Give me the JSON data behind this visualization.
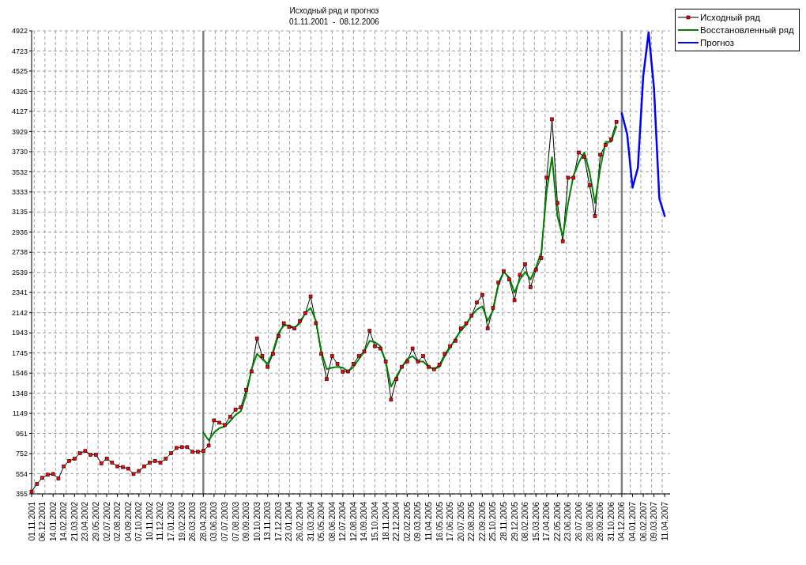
{
  "chart_data": {
    "type": "line",
    "title": "Исходный ряд и прогноз",
    "subtitle": "01.11.2001  -  08.12.2006",
    "categories": [
      "01.11.2001",
      null,
      "06.12.2001",
      null,
      "14.01.2002",
      null,
      "14.02.2002",
      null,
      "21.03.2002",
      null,
      "23.04.2002",
      null,
      "29.05.2002",
      null,
      "02.07.2002",
      null,
      "02.08.2002",
      null,
      "04.09.2002",
      null,
      "07.10.2002",
      null,
      "10.11.2002",
      null,
      "11.12.2002",
      null,
      "17.01.2003",
      null,
      "19.02.2003",
      null,
      "26.03.2003",
      null,
      "28.04.2003",
      null,
      "03.06.2003",
      null,
      "07.07.2003",
      null,
      "07.08.2003",
      null,
      "09.09.2003",
      null,
      "10.10.2003",
      null,
      "13.11.2003",
      null,
      "17.12.2003",
      null,
      "23.01.2004",
      null,
      "26.02.2004",
      null,
      "31.03.2004",
      null,
      "05.05.2004",
      null,
      "08.06.2004",
      null,
      "12.07.2004",
      null,
      "12.08.2004",
      null,
      "14.09.2004",
      null,
      "15.10.2004",
      null,
      "18.11.2004",
      null,
      "22.12.2004",
      null,
      "02.02.2005",
      null,
      "09.03.2005",
      null,
      "11.04.2005",
      null,
      "16.05.2005",
      null,
      "17.06.2005",
      null,
      "20.07.2005",
      null,
      "22.08.2005",
      null,
      "22.09.2005",
      null,
      "25.10.2005",
      null,
      "28.11.2005",
      null,
      "29.12.2005",
      null,
      "08.02.2006",
      null,
      "15.03.2006",
      null,
      "17.04.2006",
      null,
      "22.05.2006",
      null,
      "23.06.2006",
      null,
      "26.07.2006",
      null,
      "28.08.2006",
      null,
      "28.09.2006",
      null,
      "31.10.2006",
      null,
      "04.12.2006",
      null,
      "04.01.2007",
      null,
      "06.02.2007",
      null,
      "09.03.2007",
      null,
      "11.04.2007",
      null
    ],
    "series": [
      {
        "name": "Исходный ряд",
        "color": "#000000",
        "marker": "square",
        "values": [
          378,
          453,
          513,
          544,
          551,
          506,
          627,
          680,
          702,
          755,
          778,
          740,
          740,
          657,
          702,
          664,
          627,
          619,
          604,
          551,
          581,
          627,
          664,
          680,
          664,
          702,
          755,
          808,
          816,
          816,
          770,
          770,
          778,
          831,
          1080,
          1057,
          1034,
          1117,
          1185,
          1208,
          1382,
          1563,
          1887,
          1714,
          1608,
          1736,
          1910,
          2038,
          2001,
          1986,
          2061,
          2137,
          2303,
          2038,
          1736,
          1487,
          1714,
          1638,
          1560,
          1563,
          1638,
          1714,
          1759,
          1963,
          1812,
          1789,
          1661,
          1284,
          1487,
          1608,
          1661,
          1789,
          1661,
          1714,
          1608,
          1585,
          1630,
          1736,
          1812,
          1865,
          1986,
          2038,
          2114,
          2242,
          2318,
          1986,
          2189,
          2439,
          2552,
          2469,
          2265,
          2514,
          2620,
          2393,
          2567,
          2680,
          3473,
          4050,
          3224,
          2846,
          3473,
          3473,
          3722,
          3677,
          3397,
          3095,
          3699,
          3797,
          3850,
          4024,
          null,
          null,
          null,
          null,
          null,
          null,
          null,
          null,
          null,
          null
        ]
      },
      {
        "name": "Восстановленный ряд",
        "color": "#008000",
        "values": [
          null,
          null,
          null,
          null,
          null,
          null,
          null,
          null,
          null,
          null,
          null,
          null,
          null,
          null,
          null,
          null,
          null,
          null,
          null,
          null,
          null,
          null,
          null,
          null,
          null,
          null,
          null,
          null,
          null,
          null,
          null,
          null,
          960,
          883,
          960,
          1004,
          1019,
          1072,
          1133,
          1170,
          1336,
          1585,
          1736,
          1684,
          1638,
          1759,
          1940,
          2016,
          2016,
          1993,
          2038,
          2137,
          2189,
          2061,
          1759,
          1585,
          1600,
          1608,
          1600,
          1563,
          1608,
          1684,
          1759,
          1865,
          1850,
          1812,
          1661,
          1412,
          1510,
          1608,
          1684,
          1714,
          1661,
          1661,
          1608,
          1585,
          1608,
          1714,
          1797,
          1887,
          1963,
          2023,
          2114,
          2174,
          2205,
          2061,
          2167,
          2416,
          2544,
          2491,
          2340,
          2469,
          2544,
          2469,
          2590,
          2740,
          3344,
          3677,
          3095,
          2891,
          3224,
          3495,
          3624,
          3722,
          3526,
          3224,
          3571,
          3827,
          3827,
          3978,
          null,
          null,
          null,
          null,
          null,
          null,
          null,
          null,
          null,
          null
        ]
      },
      {
        "name": "Прогноз",
        "color": "#0000ff",
        "values": [
          null,
          null,
          null,
          null,
          null,
          null,
          null,
          null,
          null,
          null,
          null,
          null,
          null,
          null,
          null,
          null,
          null,
          null,
          null,
          null,
          null,
          null,
          null,
          null,
          null,
          null,
          null,
          null,
          null,
          null,
          null,
          null,
          null,
          null,
          null,
          null,
          null,
          null,
          null,
          null,
          null,
          null,
          null,
          null,
          null,
          null,
          null,
          null,
          null,
          null,
          null,
          null,
          null,
          null,
          null,
          null,
          null,
          null,
          null,
          null,
          null,
          null,
          null,
          null,
          null,
          null,
          null,
          null,
          null,
          null,
          null,
          null,
          null,
          null,
          null,
          null,
          null,
          null,
          null,
          null,
          null,
          null,
          null,
          null,
          null,
          null,
          null,
          null,
          null,
          null,
          null,
          null,
          null,
          null,
          null,
          null,
          null,
          null,
          null,
          null,
          null,
          null,
          null,
          null,
          null,
          null,
          null,
          null,
          null,
          null,
          4110,
          3903,
          3375,
          3570,
          4477,
          4907,
          4356,
          3269,
          3095,
          null
        ]
      }
    ],
    "ylim": [
      355,
      4922
    ],
    "yticks": [
      355,
      554,
      752,
      951,
      1149,
      1348,
      1546,
      1745,
      1943,
      2142,
      2341,
      2539,
      2738,
      2936,
      3135,
      3333,
      3532,
      3730,
      3929,
      4127,
      4326,
      4525,
      4723,
      4922
    ],
    "ref_lines": [
      {
        "axis": "x",
        "value": "28.04.2003",
        "color": "#808080"
      },
      {
        "axis": "x",
        "value": "04.12.2006",
        "color": "#808080"
      }
    ],
    "grid": true,
    "legend": "top right"
  }
}
